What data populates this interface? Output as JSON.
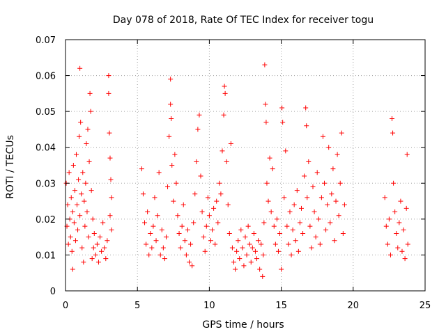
{
  "chart_data": {
    "type": "scatter",
    "title": "Day 078 of 2018, Rate Of TEC Index for receiver togu",
    "xlabel": "GPS time / hours",
    "ylabel": "ROTI / TECUs",
    "xlim": [
      0,
      25
    ],
    "ylim": [
      0,
      0.07
    ],
    "xticks": [
      0,
      5,
      10,
      15,
      20,
      25
    ],
    "xtick_labels": [
      "0",
      "5",
      "10",
      "15",
      "20",
      "25"
    ],
    "yticks": [
      0,
      0.01,
      0.02,
      0.03,
      0.04,
      0.05,
      0.06,
      0.07
    ],
    "ytick_labels": [
      "0",
      "0.01",
      "0.02",
      "0.03",
      "0.04",
      "0.05",
      "0.06",
      "0.07"
    ],
    "grid": true,
    "marker": "+",
    "color": "#ff0000",
    "series": [
      {
        "name": "ROTI",
        "points": [
          [
            0.05,
            0.03
          ],
          [
            0.1,
            0.018
          ],
          [
            0.15,
            0.024
          ],
          [
            0.2,
            0.013
          ],
          [
            0.25,
            0.033
          ],
          [
            0.3,
            0.02
          ],
          [
            0.35,
            0.015
          ],
          [
            0.4,
            0.026
          ],
          [
            0.45,
            0.011
          ],
          [
            0.5,
            0.022
          ],
          [
            0.5,
            0.006
          ],
          [
            0.55,
            0.035
          ],
          [
            0.6,
            0.019
          ],
          [
            0.65,
            0.028
          ],
          [
            0.7,
            0.014
          ],
          [
            0.75,
            0.038
          ],
          [
            0.8,
            0.024
          ],
          [
            0.85,
            0.017
          ],
          [
            0.9,
            0.031
          ],
          [
            0.95,
            0.043
          ],
          [
            1.0,
            0.021
          ],
          [
            1.0,
            0.062
          ],
          [
            1.05,
            0.047
          ],
          [
            1.1,
            0.027
          ],
          [
            1.15,
            0.012
          ],
          [
            1.2,
            0.033
          ],
          [
            1.25,
            0.008
          ],
          [
            1.3,
            0.025
          ],
          [
            1.35,
            0.018
          ],
          [
            1.4,
            0.03
          ],
          [
            1.45,
            0.041
          ],
          [
            1.5,
            0.022
          ],
          [
            1.55,
            0.045
          ],
          [
            1.6,
            0.015
          ],
          [
            1.65,
            0.036
          ],
          [
            1.7,
            0.055
          ],
          [
            1.75,
            0.05
          ],
          [
            1.8,
            0.028
          ],
          [
            1.85,
            0.009
          ],
          [
            1.9,
            0.02
          ],
          [
            1.95,
            0.012
          ],
          [
            2.0,
            0.016
          ],
          [
            2.1,
            0.01
          ],
          [
            2.2,
            0.013
          ],
          [
            2.3,
            0.008
          ],
          [
            2.4,
            0.015
          ],
          [
            2.5,
            0.011
          ],
          [
            2.6,
            0.019
          ],
          [
            2.7,
            0.012
          ],
          [
            2.8,
            0.009
          ],
          [
            2.9,
            0.014
          ],
          [
            3.0,
            0.06
          ],
          [
            3.0,
            0.055
          ],
          [
            3.05,
            0.044
          ],
          [
            3.1,
            0.037
          ],
          [
            3.1,
            0.021
          ],
          [
            3.15,
            0.031
          ],
          [
            3.2,
            0.017
          ],
          [
            3.2,
            0.026
          ],
          [
            5.3,
            0.034
          ],
          [
            5.4,
            0.027
          ],
          [
            5.5,
            0.019
          ],
          [
            5.6,
            0.013
          ],
          [
            5.7,
            0.022
          ],
          [
            5.8,
            0.01
          ],
          [
            5.9,
            0.016
          ],
          [
            6.0,
            0.012
          ],
          [
            6.1,
            0.018
          ],
          [
            6.2,
            0.026
          ],
          [
            6.3,
            0.014
          ],
          [
            6.4,
            0.021
          ],
          [
            6.5,
            0.033
          ],
          [
            6.6,
            0.01
          ],
          [
            6.7,
            0.017
          ],
          [
            6.8,
            0.012
          ],
          [
            6.9,
            0.009
          ],
          [
            7.0,
            0.015
          ],
          [
            7.1,
            0.029
          ],
          [
            7.2,
            0.043
          ],
          [
            7.3,
            0.059
          ],
          [
            7.3,
            0.052
          ],
          [
            7.35,
            0.048
          ],
          [
            7.4,
            0.035
          ],
          [
            7.5,
            0.025
          ],
          [
            7.6,
            0.038
          ],
          [
            7.7,
            0.03
          ],
          [
            7.8,
            0.021
          ],
          [
            7.9,
            0.016
          ],
          [
            8.0,
            0.012
          ],
          [
            8.1,
            0.018
          ],
          [
            8.2,
            0.024
          ],
          [
            8.3,
            0.014
          ],
          [
            8.4,
            0.01
          ],
          [
            8.5,
            0.017
          ],
          [
            8.6,
            0.008
          ],
          [
            8.7,
            0.013
          ],
          [
            8.8,
            0.007
          ],
          [
            8.9,
            0.019
          ],
          [
            9.0,
            0.027
          ],
          [
            9.1,
            0.036
          ],
          [
            9.2,
            0.045
          ],
          [
            9.3,
            0.049
          ],
          [
            9.4,
            0.032
          ],
          [
            9.5,
            0.022
          ],
          [
            9.6,
            0.015
          ],
          [
            9.7,
            0.011
          ],
          [
            9.8,
            0.018
          ],
          [
            9.9,
            0.026
          ],
          [
            10.0,
            0.021
          ],
          [
            10.1,
            0.014
          ],
          [
            10.2,
            0.017
          ],
          [
            10.3,
            0.023
          ],
          [
            10.4,
            0.013
          ],
          [
            10.5,
            0.025
          ],
          [
            10.6,
            0.019
          ],
          [
            10.7,
            0.03
          ],
          [
            10.8,
            0.027
          ],
          [
            10.9,
            0.039
          ],
          [
            11.0,
            0.049
          ],
          [
            11.05,
            0.057
          ],
          [
            11.1,
            0.055
          ],
          [
            11.2,
            0.036
          ],
          [
            11.3,
            0.024
          ],
          [
            11.4,
            0.016
          ],
          [
            11.5,
            0.041
          ],
          [
            11.6,
            0.012
          ],
          [
            11.7,
            0.008
          ],
          [
            11.8,
            0.006
          ],
          [
            11.9,
            0.011
          ],
          [
            12.0,
            0.014
          ],
          [
            12.1,
            0.009
          ],
          [
            12.2,
            0.017
          ],
          [
            12.3,
            0.012
          ],
          [
            12.4,
            0.007
          ],
          [
            12.5,
            0.015
          ],
          [
            12.6,
            0.01
          ],
          [
            12.7,
            0.018
          ],
          [
            12.8,
            0.013
          ],
          [
            12.9,
            0.008
          ],
          [
            13.0,
            0.012
          ],
          [
            13.1,
            0.016
          ],
          [
            13.2,
            0.011
          ],
          [
            13.3,
            0.009
          ],
          [
            13.4,
            0.014
          ],
          [
            13.5,
            0.006
          ],
          [
            13.6,
            0.013
          ],
          [
            13.7,
            0.004
          ],
          [
            13.75,
            0.01
          ],
          [
            13.8,
            0.019
          ],
          [
            13.85,
            0.063
          ],
          [
            13.9,
            0.052
          ],
          [
            13.95,
            0.047
          ],
          [
            14.0,
            0.03
          ],
          [
            14.1,
            0.025
          ],
          [
            14.2,
            0.037
          ],
          [
            14.3,
            0.022
          ],
          [
            14.4,
            0.034
          ],
          [
            14.5,
            0.018
          ],
          [
            14.6,
            0.013
          ],
          [
            14.7,
            0.02
          ],
          [
            14.8,
            0.011
          ],
          [
            14.9,
            0.016
          ],
          [
            15.0,
            0.006
          ],
          [
            15.05,
            0.051
          ],
          [
            15.1,
            0.047
          ],
          [
            15.2,
            0.026
          ],
          [
            15.3,
            0.039
          ],
          [
            15.4,
            0.018
          ],
          [
            15.5,
            0.013
          ],
          [
            15.6,
            0.022
          ],
          [
            15.7,
            0.01
          ],
          [
            15.8,
            0.017
          ],
          [
            15.9,
            0.024
          ],
          [
            16.0,
            0.014
          ],
          [
            16.1,
            0.028
          ],
          [
            16.2,
            0.011
          ],
          [
            16.3,
            0.019
          ],
          [
            16.4,
            0.023
          ],
          [
            16.5,
            0.016
          ],
          [
            16.6,
            0.032
          ],
          [
            16.7,
            0.051
          ],
          [
            16.75,
            0.046
          ],
          [
            16.8,
            0.026
          ],
          [
            16.9,
            0.036
          ],
          [
            17.0,
            0.018
          ],
          [
            17.1,
            0.012
          ],
          [
            17.2,
            0.029
          ],
          [
            17.3,
            0.022
          ],
          [
            17.4,
            0.015
          ],
          [
            17.5,
            0.033
          ],
          [
            17.6,
            0.02
          ],
          [
            17.7,
            0.013
          ],
          [
            17.8,
            0.026
          ],
          [
            17.9,
            0.043
          ],
          [
            18.0,
            0.03
          ],
          [
            18.1,
            0.017
          ],
          [
            18.2,
            0.024
          ],
          [
            18.3,
            0.04
          ],
          [
            18.4,
            0.019
          ],
          [
            18.5,
            0.027
          ],
          [
            18.6,
            0.034
          ],
          [
            18.7,
            0.014
          ],
          [
            18.8,
            0.025
          ],
          [
            18.9,
            0.038
          ],
          [
            19.0,
            0.021
          ],
          [
            19.1,
            0.03
          ],
          [
            19.2,
            0.044
          ],
          [
            19.3,
            0.016
          ],
          [
            19.4,
            0.024
          ],
          [
            22.2,
            0.026
          ],
          [
            22.3,
            0.018
          ],
          [
            22.4,
            0.013
          ],
          [
            22.5,
            0.02
          ],
          [
            22.6,
            0.01
          ],
          [
            22.7,
            0.048
          ],
          [
            22.75,
            0.044
          ],
          [
            22.8,
            0.03
          ],
          [
            22.9,
            0.022
          ],
          [
            23.0,
            0.016
          ],
          [
            23.1,
            0.012
          ],
          [
            23.2,
            0.019
          ],
          [
            23.3,
            0.025
          ],
          [
            23.4,
            0.011
          ],
          [
            23.5,
            0.017
          ],
          [
            23.6,
            0.009
          ],
          [
            23.7,
            0.023
          ],
          [
            23.75,
            0.038
          ],
          [
            23.8,
            0.013
          ]
        ]
      }
    ]
  }
}
